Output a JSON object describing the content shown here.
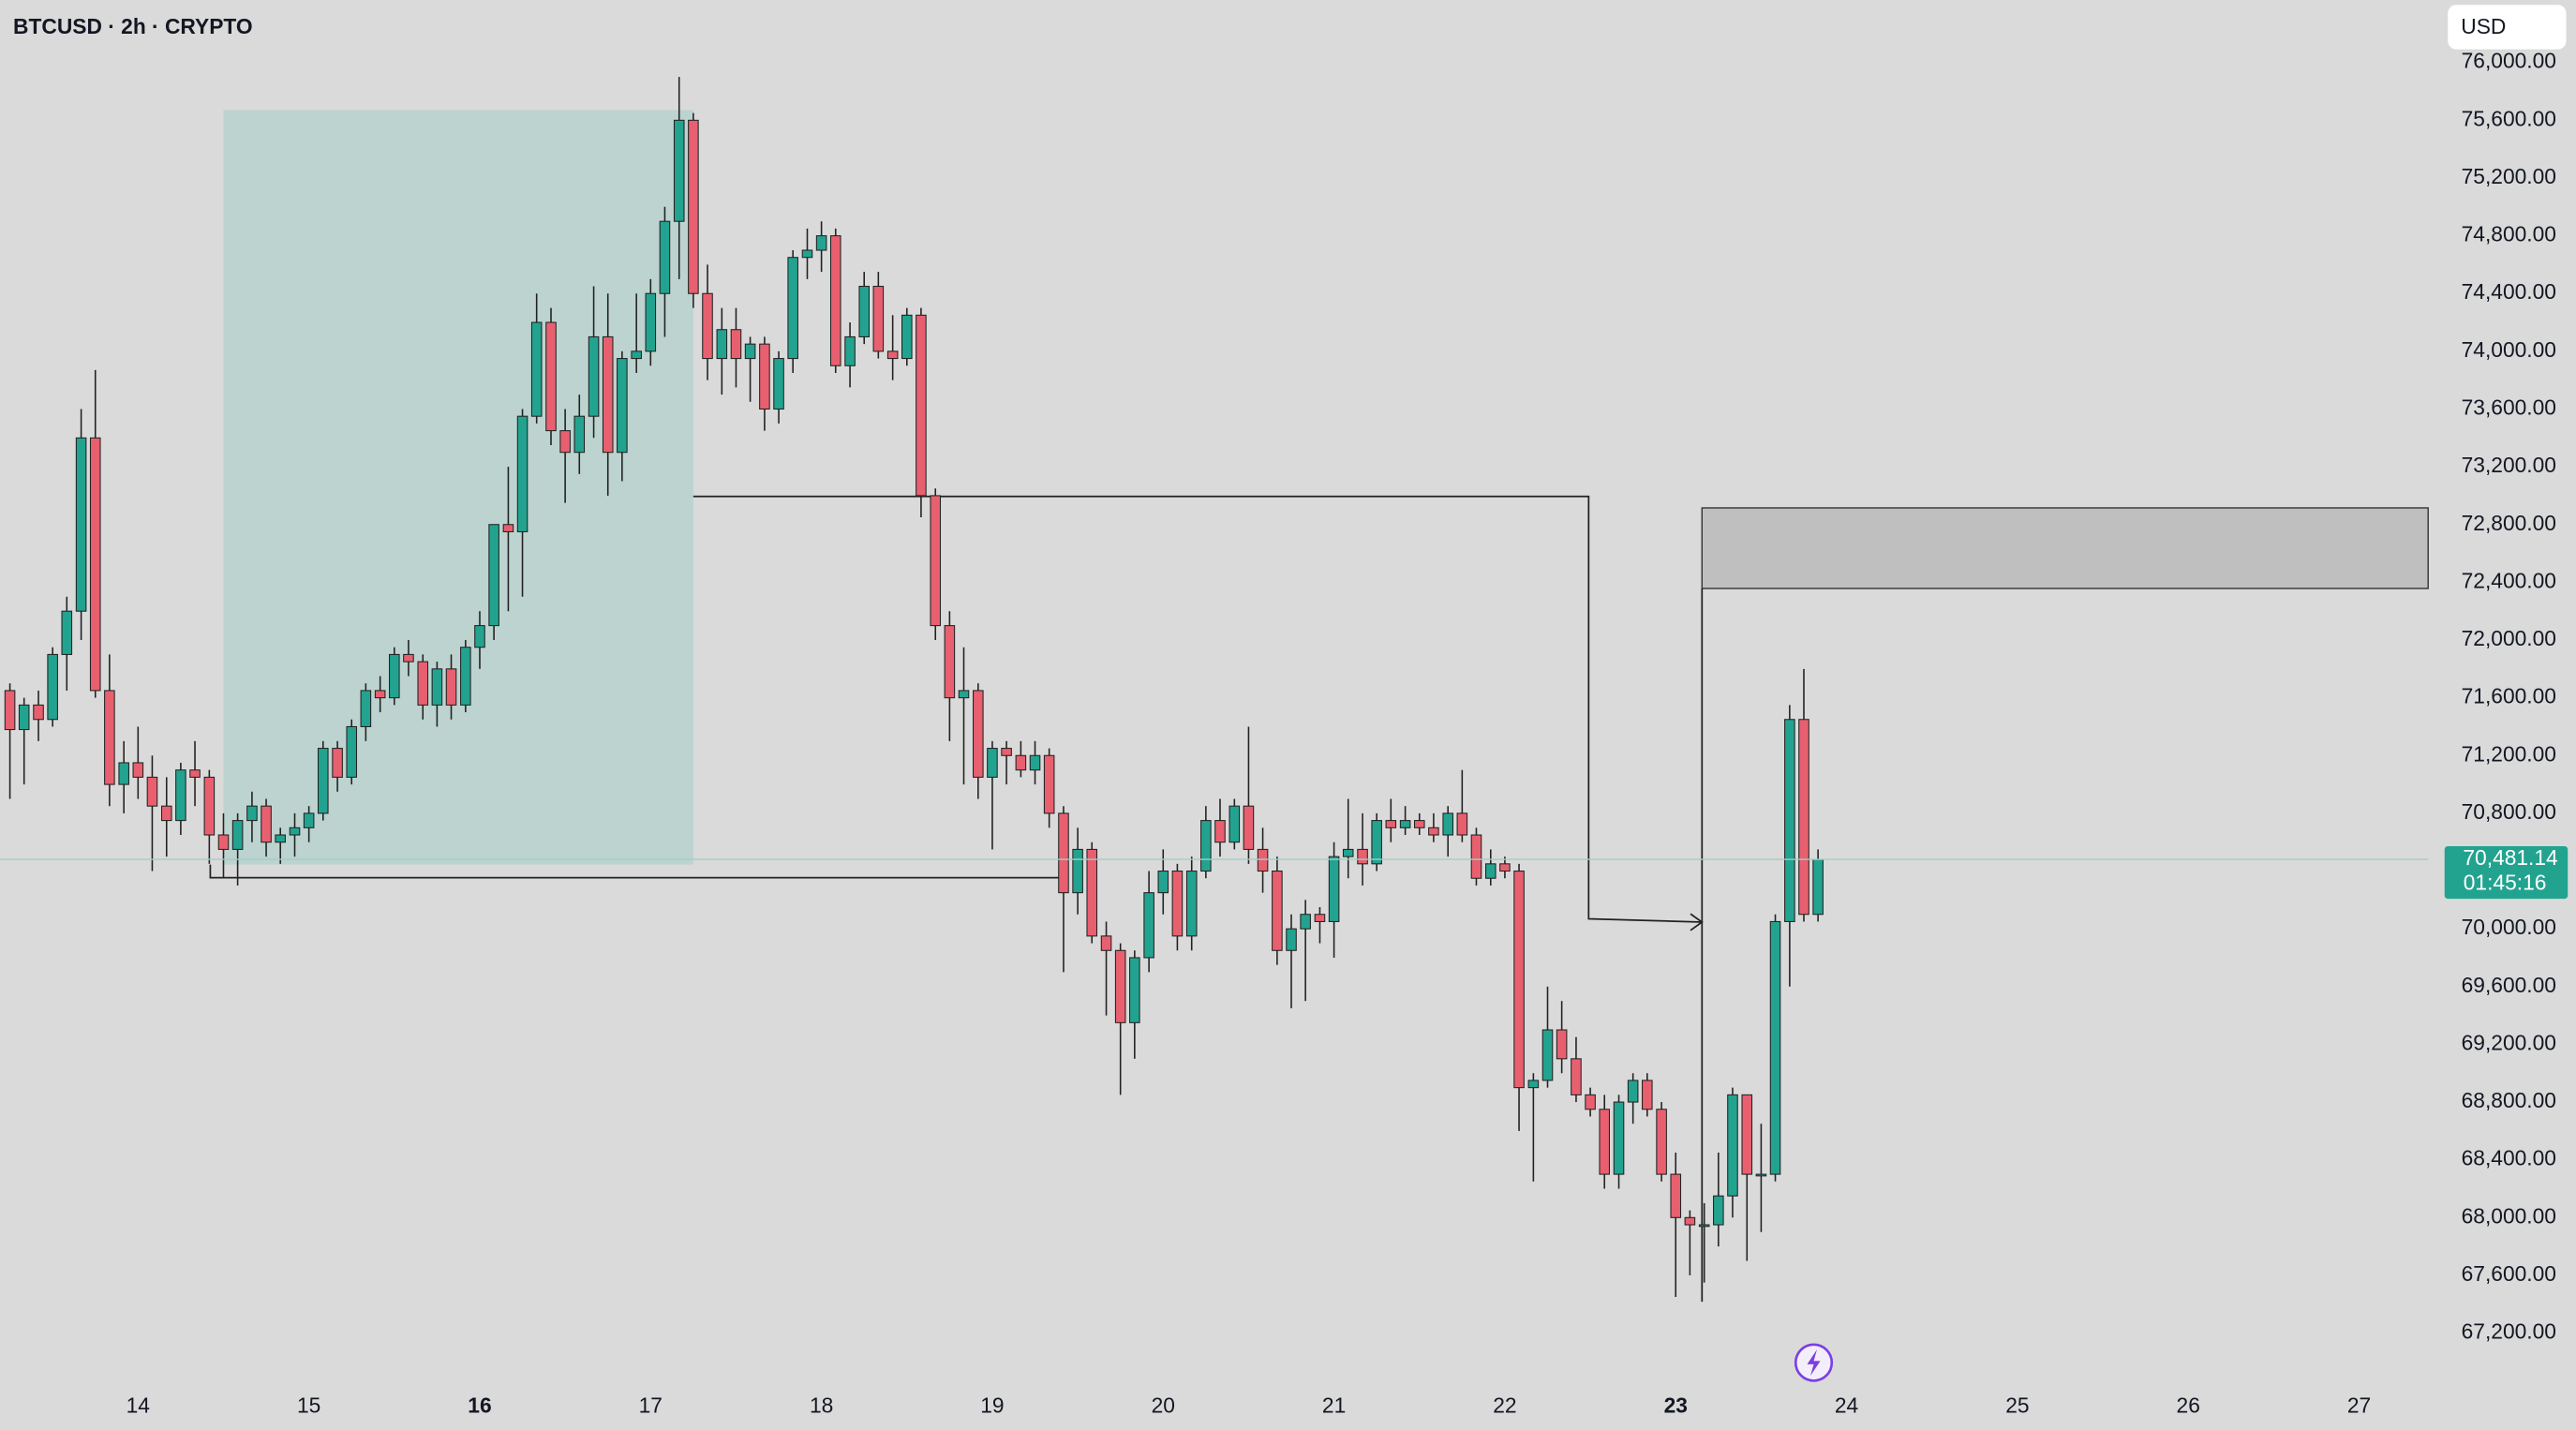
{
  "chart_data": {
    "type": "candlestick",
    "title": "BTCUSD · 2h · CRYPTO",
    "currency": "USD",
    "last_price_label": "70,481.14",
    "countdown": "01:45:16",
    "up_color": "#22a38f",
    "down_color": "#e8606f",
    "grid": false,
    "xlim": [
      13.192,
      27.404
    ],
    "xticks": [
      14,
      15,
      16,
      17,
      18,
      19,
      20,
      21,
      22,
      23,
      24,
      25,
      26,
      27
    ],
    "bold_xticks": [
      16,
      23
    ],
    "ylim": [
      66893,
      76433
    ],
    "yticks": [
      {
        "value": 67200,
        "label": "67,200.00"
      },
      {
        "value": 67600,
        "label": "67,600.00"
      },
      {
        "value": 68000,
        "label": "68,000.00"
      },
      {
        "value": 68400,
        "label": "68,400.00"
      },
      {
        "value": 68800,
        "label": "68,800.00"
      },
      {
        "value": 69200,
        "label": "69,200.00"
      },
      {
        "value": 69600,
        "label": "69,600.00"
      },
      {
        "value": 70000,
        "label": "70,000.00"
      },
      {
        "value": 70800,
        "label": "70,800.00"
      },
      {
        "value": 71200,
        "label": "71,200.00"
      },
      {
        "value": 71600,
        "label": "71,600.00"
      },
      {
        "value": 72000,
        "label": "72,000.00"
      },
      {
        "value": 72400,
        "label": "72,400.00"
      },
      {
        "value": 72800,
        "label": "72,800.00"
      },
      {
        "value": 73200,
        "label": "73,200.00"
      },
      {
        "value": 73600,
        "label": "73,600.00"
      },
      {
        "value": 74000,
        "label": "74,000.00"
      },
      {
        "value": 74400,
        "label": "74,400.00"
      },
      {
        "value": 74800,
        "label": "74,800.00"
      },
      {
        "value": 75200,
        "label": "75,200.00"
      },
      {
        "value": 75600,
        "label": "75,600.00"
      },
      {
        "value": 76000,
        "label": "76,000.00"
      }
    ],
    "x": [
      13.25,
      13.333,
      13.417,
      13.5,
      13.583,
      13.667,
      13.75,
      13.833,
      13.917,
      14,
      14.083,
      14.167,
      14.25,
      14.333,
      14.417,
      14.5,
      14.583,
      14.667,
      14.75,
      14.833,
      14.917,
      15,
      15.083,
      15.167,
      15.25,
      15.333,
      15.417,
      15.5,
      15.583,
      15.667,
      15.75,
      15.833,
      15.917,
      16,
      16.083,
      16.167,
      16.25,
      16.333,
      16.417,
      16.5,
      16.583,
      16.667,
      16.75,
      16.833,
      16.917,
      17,
      17.083,
      17.167,
      17.25,
      17.333,
      17.417,
      17.5,
      17.583,
      17.667,
      17.75,
      17.833,
      17.917,
      18,
      18.083,
      18.167,
      18.25,
      18.333,
      18.417,
      18.5,
      18.583,
      18.667,
      18.75,
      18.833,
      18.917,
      19,
      19.083,
      19.167,
      19.25,
      19.333,
      19.417,
      19.5,
      19.583,
      19.667,
      19.75,
      19.833,
      19.917,
      20,
      20.083,
      20.167,
      20.25,
      20.333,
      20.417,
      20.5,
      20.583,
      20.667,
      20.75,
      20.833,
      20.917,
      21,
      21.083,
      21.167,
      21.25,
      21.333,
      21.417,
      21.5,
      21.583,
      21.667,
      21.75,
      21.833,
      21.917,
      22,
      22.083,
      22.167,
      22.25,
      22.333,
      22.417,
      22.5,
      22.583,
      22.667,
      22.75,
      22.833,
      22.917,
      23,
      23.083,
      23.167,
      23.25,
      23.333,
      23.417,
      23.5,
      23.583,
      23.667,
      23.75,
      23.833
    ],
    "open": [
      71650,
      71380,
      71550,
      71450,
      71900,
      72200,
      73400,
      71650,
      71000,
      71150,
      71050,
      70850,
      70750,
      71100,
      71050,
      70650,
      70550,
      70750,
      70850,
      70600,
      70650,
      70700,
      70800,
      71250,
      71050,
      71400,
      71650,
      71600,
      71900,
      71850,
      71550,
      71800,
      71550,
      71950,
      72100,
      72800,
      72750,
      73550,
      74200,
      73450,
      73300,
      73550,
      74100,
      73300,
      73950,
      74000,
      74400,
      74900,
      75600,
      74400,
      73950,
      74150,
      73950,
      74050,
      73600,
      73950,
      74650,
      74700,
      74800,
      73900,
      74100,
      74450,
      74000,
      73950,
      74250,
      73000,
      72100,
      71600,
      71650,
      71050,
      71250,
      71200,
      71100,
      71200,
      70800,
      70250,
      70550,
      69950,
      69850,
      69350,
      69800,
      70250,
      70400,
      69950,
      70400,
      70750,
      70600,
      70850,
      70550,
      70400,
      69850,
      70000,
      70100,
      70050,
      70500,
      70550,
      70450,
      70750,
      70700,
      70750,
      70700,
      70650,
      70800,
      70650,
      70350,
      70450,
      70400,
      68900,
      68950,
      69300,
      69100,
      68850,
      68750,
      68300,
      68800,
      68950,
      68750,
      68300,
      68000,
      67950,
      67950,
      68150,
      68850,
      68300,
      68300,
      70050,
      71450,
      70100
    ],
    "high": [
      71700,
      71600,
      71650,
      71950,
      72300,
      73600,
      73870,
      71900,
      71300,
      71400,
      71200,
      71050,
      71150,
      71300,
      71100,
      70800,
      70800,
      70950,
      70900,
      70700,
      70800,
      70850,
      71300,
      71300,
      71450,
      71700,
      71750,
      71950,
      72000,
      71900,
      71850,
      71900,
      72000,
      72200,
      72800,
      73200,
      73600,
      74400,
      74300,
      73600,
      73700,
      74450,
      74400,
      74000,
      74400,
      74500,
      75000,
      75900,
      75650,
      74600,
      74300,
      74300,
      74100,
      74100,
      74000,
      74700,
      74850,
      74900,
      74850,
      74200,
      74550,
      74550,
      74250,
      74300,
      74300,
      73050,
      72200,
      71950,
      71700,
      71300,
      71300,
      71300,
      71300,
      71250,
      70850,
      70700,
      70600,
      70050,
      69900,
      69850,
      70400,
      70550,
      70450,
      70500,
      70850,
      70900,
      70900,
      71400,
      70700,
      70500,
      70100,
      70200,
      70150,
      70600,
      70900,
      70800,
      70800,
      70900,
      70850,
      70800,
      70800,
      70850,
      71100,
      70700,
      70550,
      70500,
      70450,
      69000,
      69600,
      69500,
      69250,
      68900,
      68850,
      68850,
      69000,
      69000,
      68800,
      68450,
      68050,
      68100,
      68450,
      68900,
      68850,
      68650,
      70100,
      71550,
      71800,
      70550
    ],
    "low": [
      70900,
      71000,
      71300,
      71400,
      71650,
      72000,
      71600,
      70850,
      70800,
      70900,
      70400,
      70500,
      70650,
      70850,
      70450,
      70350,
      70300,
      70600,
      70500,
      70450,
      70500,
      70600,
      70750,
      70950,
      71000,
      71300,
      71500,
      71550,
      71750,
      71450,
      71400,
      71450,
      71500,
      71800,
      72000,
      72200,
      72300,
      73500,
      73350,
      72950,
      73150,
      73400,
      73000,
      73100,
      73850,
      73900,
      74100,
      74500,
      74300,
      73800,
      73700,
      73750,
      73650,
      73450,
      73500,
      73850,
      74500,
      74550,
      73850,
      73750,
      74050,
      73950,
      73800,
      73900,
      72850,
      72000,
      71300,
      71000,
      70900,
      70550,
      71000,
      71050,
      71000,
      70700,
      69700,
      70100,
      69900,
      69400,
      68850,
      69100,
      69700,
      70100,
      69850,
      69850,
      70350,
      70500,
      70550,
      70450,
      70250,
      69750,
      69450,
      69500,
      69900,
      69800,
      70350,
      70300,
      70400,
      70600,
      70650,
      70650,
      70600,
      70500,
      70600,
      70300,
      70300,
      70350,
      68600,
      68250,
      68900,
      69000,
      68800,
      68700,
      68200,
      68200,
      68650,
      68700,
      68250,
      67450,
      67600,
      67550,
      67800,
      68000,
      67700,
      67900,
      68250,
      69600,
      70050,
      70050
    ],
    "close": [
      71380,
      71550,
      71450,
      71900,
      72200,
      73400,
      71650,
      71000,
      71150,
      71050,
      70850,
      70750,
      71100,
      71050,
      70650,
      70550,
      70750,
      70850,
      70600,
      70650,
      70700,
      70800,
      71250,
      71050,
      71400,
      71650,
      71600,
      71900,
      71850,
      71550,
      71800,
      71550,
      71950,
      72100,
      72800,
      72750,
      73550,
      74200,
      73450,
      73300,
      73550,
      74100,
      73300,
      73950,
      74000,
      74400,
      74900,
      75600,
      74400,
      73950,
      74150,
      73950,
      74050,
      73600,
      73950,
      74650,
      74700,
      74800,
      73900,
      74100,
      74450,
      74000,
      73950,
      74250,
      73000,
      72100,
      71600,
      71650,
      71050,
      71250,
      71200,
      71100,
      71200,
      70800,
      70250,
      70550,
      69950,
      69850,
      69350,
      69800,
      70250,
      70400,
      69950,
      70400,
      70750,
      70600,
      70850,
      70550,
      70400,
      69850,
      70000,
      70100,
      70050,
      70500,
      70550,
      70450,
      70750,
      70700,
      70750,
      70700,
      70650,
      70800,
      70650,
      70350,
      70450,
      70400,
      68900,
      68950,
      69300,
      69100,
      68850,
      68750,
      68300,
      68800,
      68950,
      68750,
      68300,
      68000,
      67950,
      67950,
      68150,
      68850,
      68300,
      68300,
      70050,
      71450,
      70100,
      70481.14
    ]
  }
}
